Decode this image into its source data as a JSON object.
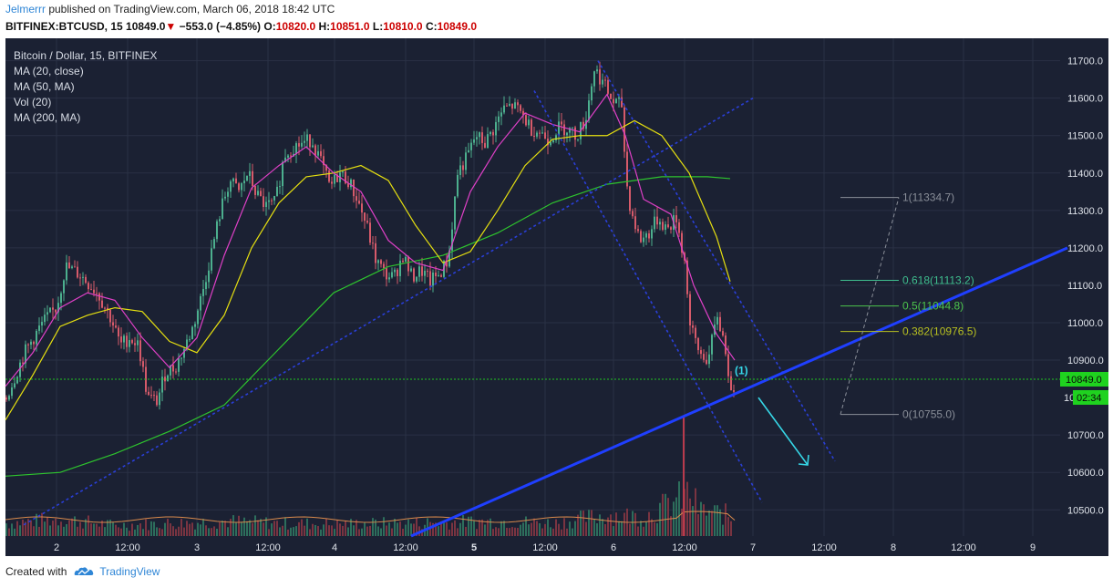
{
  "header": {
    "author": "Jelmerrr",
    "published": " published on TradingView.com, March 06, 2018 18:42 UTC",
    "symbol": "BITFINEX:BTCUSD, 15",
    "last": "10849.0",
    "change": "−553.0 (−4.85%)",
    "o_label": "O:",
    "o_val": "10820.0",
    "h_label": "H:",
    "h_val": "10851.0",
    "l_label": "L:",
    "l_val": "10810.0",
    "c_label": "C:",
    "c_val": "10849.0"
  },
  "legend": [
    "Bitcoin / Dollar, 15, BITFINEX",
    "MA (20, close)",
    "MA (50, MA)",
    "Vol (20)",
    "MA (200, MA)"
  ],
  "footer": {
    "created": "Created with",
    "brand": "TradingView"
  },
  "colors": {
    "background": "#1b2133",
    "grid": "#2a3145",
    "up": "#4caf8e",
    "down": "#d65a6a",
    "ma20": "#e040c8",
    "ma50": "#e6e010",
    "ma200": "#2ec42e",
    "trend": "#1f3fff",
    "channel": "#2a3fd8",
    "arrow": "#36d6e6",
    "price_line": "#22c422",
    "price_tag": "#1fd21f"
  },
  "chart_data": {
    "type": "candlestick",
    "y_ticks": [
      "11700.0",
      "11600.0",
      "11500.0",
      "11400.0",
      "11300.0",
      "11200.0",
      "11100.0",
      "11000.0",
      "10900.0",
      "10700.0",
      "10600.0",
      "10500.0"
    ],
    "ylim": [
      10430,
      11760
    ],
    "x_ticks": [
      "2",
      "12:00",
      "3",
      "12:00",
      "4",
      "12:00",
      "5",
      "12:00",
      "6",
      "12:00",
      "7",
      "12:00",
      "8",
      "12:00",
      "9"
    ],
    "bold_x_tick": "5",
    "last_price": {
      "value": 10849.0,
      "label": "10849.0",
      "countdown": "02:34",
      "partial_label": "10"
    },
    "annotation": "(1)",
    "fib_levels": [
      {
        "ratio": 1,
        "label": "1(11334.7)",
        "price": 11334.7,
        "color": "#8a8f99"
      },
      {
        "ratio": 0.618,
        "label": "0.618(11113.2)",
        "price": 11113.2,
        "color": "#3fbf8f"
      },
      {
        "ratio": 0.5,
        "label": "0.5(11044.8)",
        "price": 11044.8,
        "color": "#4cc44c"
      },
      {
        "ratio": 0.382,
        "label": "0.382(10976.5)",
        "price": 10976.5,
        "color": "#b8c020"
      },
      {
        "ratio": 0,
        "label": "0(10755.0)",
        "price": 10755.0,
        "color": "#8a8f99"
      }
    ],
    "price_path": [
      [
        0,
        10800
      ],
      [
        20,
        10920
      ],
      [
        40,
        11000
      ],
      [
        55,
        11040
      ],
      [
        65,
        11150
      ],
      [
        80,
        11130
      ],
      [
        100,
        11080
      ],
      [
        115,
        11010
      ],
      [
        125,
        10940
      ],
      [
        135,
        10960
      ],
      [
        145,
        10940
      ],
      [
        155,
        10800
      ],
      [
        165,
        10790
      ],
      [
        175,
        10870
      ],
      [
        185,
        10880
      ],
      [
        195,
        10930
      ],
      [
        205,
        10990
      ],
      [
        215,
        11080
      ],
      [
        225,
        11190
      ],
      [
        235,
        11300
      ],
      [
        245,
        11380
      ],
      [
        255,
        11350
      ],
      [
        265,
        11400
      ],
      [
        275,
        11340
      ],
      [
        285,
        11310
      ],
      [
        295,
        11320
      ],
      [
        305,
        11450
      ],
      [
        315,
        11470
      ],
      [
        325,
        11480
      ],
      [
        335,
        11490
      ],
      [
        345,
        11430
      ],
      [
        355,
        11360
      ],
      [
        365,
        11400
      ],
      [
        375,
        11380
      ],
      [
        385,
        11330
      ],
      [
        395,
        11260
      ],
      [
        405,
        11170
      ],
      [
        415,
        11130
      ],
      [
        425,
        11120
      ],
      [
        435,
        11180
      ],
      [
        445,
        11120
      ],
      [
        455,
        11140
      ],
      [
        465,
        11110
      ],
      [
        475,
        11130
      ],
      [
        485,
        11170
      ],
      [
        495,
        11400
      ],
      [
        505,
        11440
      ],
      [
        515,
        11500
      ],
      [
        525,
        11480
      ],
      [
        535,
        11520
      ],
      [
        545,
        11570
      ],
      [
        555,
        11580
      ],
      [
        565,
        11560
      ],
      [
        575,
        11520
      ],
      [
        585,
        11510
      ],
      [
        595,
        11490
      ],
      [
        605,
        11520
      ],
      [
        615,
        11520
      ],
      [
        625,
        11500
      ],
      [
        635,
        11540
      ],
      [
        645,
        11680
      ],
      [
        655,
        11640
      ],
      [
        665,
        11590
      ],
      [
        675,
        11580
      ],
      [
        680,
        11380
      ],
      [
        685,
        11300
      ],
      [
        695,
        11220
      ],
      [
        705,
        11240
      ],
      [
        715,
        11280
      ],
      [
        725,
        11250
      ],
      [
        735,
        11280
      ],
      [
        745,
        11150
      ],
      [
        750,
        10990
      ],
      [
        760,
        10920
      ],
      [
        770,
        10900
      ],
      [
        780,
        11020
      ],
      [
        790,
        10920
      ],
      [
        795,
        10800
      ],
      [
        800,
        10849
      ]
    ],
    "ma20": [
      [
        0,
        10830
      ],
      [
        30,
        10920
      ],
      [
        60,
        11040
      ],
      [
        90,
        11080
      ],
      [
        120,
        11060
      ],
      [
        150,
        10960
      ],
      [
        180,
        10880
      ],
      [
        210,
        10960
      ],
      [
        240,
        11180
      ],
      [
        270,
        11360
      ],
      [
        300,
        11420
      ],
      [
        330,
        11470
      ],
      [
        360,
        11400
      ],
      [
        390,
        11350
      ],
      [
        420,
        11220
      ],
      [
        450,
        11160
      ],
      [
        480,
        11140
      ],
      [
        510,
        11350
      ],
      [
        540,
        11470
      ],
      [
        570,
        11560
      ],
      [
        600,
        11530
      ],
      [
        630,
        11510
      ],
      [
        660,
        11610
      ],
      [
        680,
        11500
      ],
      [
        700,
        11330
      ],
      [
        730,
        11290
      ],
      [
        755,
        11100
      ],
      [
        780,
        10970
      ],
      [
        800,
        10900
      ]
    ],
    "ma50": [
      [
        0,
        10740
      ],
      [
        30,
        10860
      ],
      [
        60,
        10990
      ],
      [
        90,
        11020
      ],
      [
        120,
        11040
      ],
      [
        150,
        11030
      ],
      [
        180,
        10950
      ],
      [
        210,
        10920
      ],
      [
        240,
        11020
      ],
      [
        270,
        11200
      ],
      [
        300,
        11320
      ],
      [
        330,
        11390
      ],
      [
        360,
        11400
      ],
      [
        390,
        11420
      ],
      [
        420,
        11380
      ],
      [
        450,
        11260
      ],
      [
        480,
        11160
      ],
      [
        510,
        11190
      ],
      [
        540,
        11300
      ],
      [
        570,
        11420
      ],
      [
        600,
        11490
      ],
      [
        630,
        11500
      ],
      [
        660,
        11500
      ],
      [
        690,
        11540
      ],
      [
        720,
        11500
      ],
      [
        750,
        11400
      ],
      [
        780,
        11230
      ],
      [
        795,
        11110
      ]
    ],
    "ma200": [
      [
        0,
        10590
      ],
      [
        60,
        10600
      ],
      [
        120,
        10650
      ],
      [
        180,
        10710
      ],
      [
        240,
        10780
      ],
      [
        300,
        10930
      ],
      [
        360,
        11080
      ],
      [
        420,
        11150
      ],
      [
        480,
        11180
      ],
      [
        540,
        11240
      ],
      [
        600,
        11320
      ],
      [
        660,
        11370
      ],
      [
        720,
        11390
      ],
      [
        770,
        11390
      ],
      [
        795,
        11385
      ]
    ],
    "volume": [
      [
        0,
        0.3
      ],
      [
        60,
        0.4
      ],
      [
        120,
        0.25
      ],
      [
        180,
        0.3
      ],
      [
        240,
        0.35
      ],
      [
        300,
        0.3
      ],
      [
        360,
        0.28
      ],
      [
        420,
        0.3
      ],
      [
        480,
        0.32
      ],
      [
        540,
        0.35
      ],
      [
        600,
        0.3
      ],
      [
        660,
        0.5
      ],
      [
        700,
        0.45
      ],
      [
        750,
        1.0
      ],
      [
        760,
        0.6
      ],
      [
        790,
        0.5
      ],
      [
        800,
        0.3
      ]
    ],
    "trend_line": [
      [
        445,
        10430
      ],
      [
        1165,
        11200
      ]
    ],
    "channel_upper": [
      [
        20,
        10460
      ],
      [
        820,
        11600
      ]
    ],
    "channel_lower_a": [
      [
        580,
        11620
      ],
      [
        830,
        10520
      ]
    ],
    "channel_lower_b": [
      [
        650,
        11700
      ],
      [
        910,
        10630
      ]
    ]
  }
}
